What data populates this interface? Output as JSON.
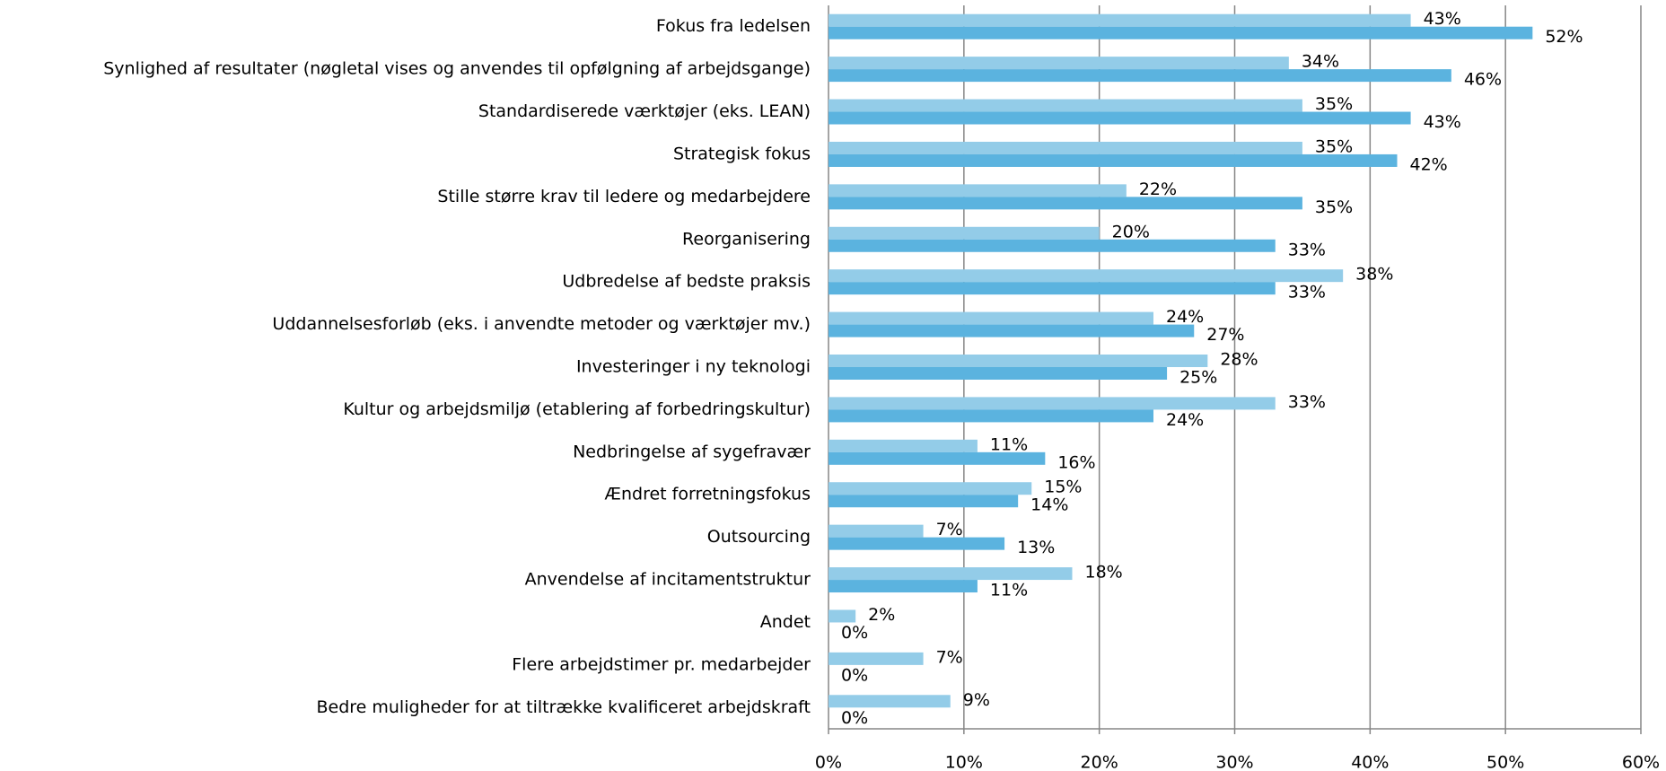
{
  "chart_data": {
    "type": "hbar",
    "categories": [
      "Fokus fra ledelsen",
      "Synlighed af resultater (nøgletal vises og anvendes til opfølgning af arbejdsgange)",
      "Standardiserede værktøjer (eks. LEAN)",
      "Strategisk fokus",
      "Stille større krav til ledere og medarbejdere",
      "Reorganisering",
      "Udbredelse af bedste praksis",
      "Uddannelsesforløb (eks. i anvendte metoder og værktøjer mv.)",
      "Investeringer i ny teknologi",
      "Kultur og arbejdsmiljø (etablering af forbedringskultur)",
      "Nedbringelse af sygefravær",
      "Ændret forretningsfokus",
      "Outsourcing",
      "Anvendelse af incitamentstruktur",
      "Andet",
      "Flere arbejdstimer pr. medarbejder",
      "Bedre muligheder for at tiltrække kvalificeret arbejdskraft"
    ],
    "series": [
      {
        "color": "#93cce8",
        "values": [
          43,
          34,
          35,
          35,
          22,
          20,
          38,
          24,
          28,
          33,
          11,
          15,
          7,
          18,
          2,
          7,
          9
        ],
        "value_labels": [
          "43%",
          "34%",
          "35%",
          "35%",
          "22%",
          "20%",
          "38%",
          "24%",
          "28%",
          "33%",
          "11%",
          "15%",
          "7%",
          "18%",
          "2%",
          "7%",
          "9%"
        ]
      },
      {
        "color": "#5bb3df",
        "values": [
          52,
          46,
          43,
          42,
          35,
          33,
          33,
          27,
          25,
          24,
          16,
          14,
          13,
          11,
          0,
          0,
          0
        ],
        "value_labels": [
          "52%",
          "46%",
          "43%",
          "42%",
          "35%",
          "33%",
          "33%",
          "27%",
          "25%",
          "24%",
          "16%",
          "14%",
          "13%",
          "11%",
          "0%",
          "0%",
          "0%"
        ]
      }
    ],
    "xlim": [
      0,
      60
    ],
    "xticks": [
      {
        "value": 0,
        "label": "0%"
      },
      {
        "value": 10,
        "label": "10%"
      },
      {
        "value": 20,
        "label": "20%"
      },
      {
        "value": 30,
        "label": "30%"
      },
      {
        "value": 40,
        "label": "40%"
      },
      {
        "value": 50,
        "label": "50%"
      },
      {
        "value": 60,
        "label": "60%"
      }
    ],
    "grid": true
  }
}
